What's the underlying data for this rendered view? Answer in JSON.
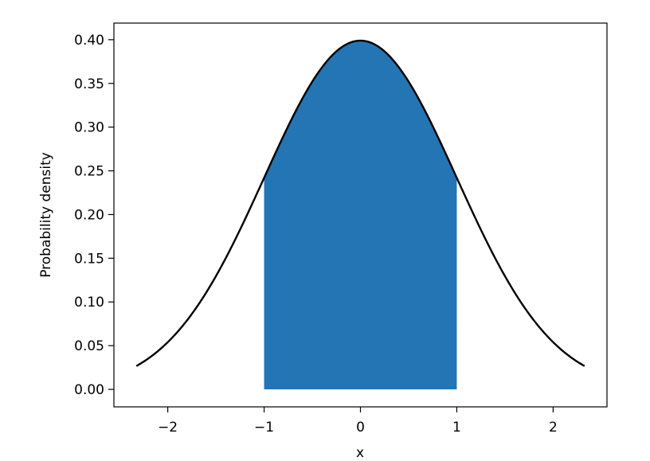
{
  "chart_data": {
    "type": "area",
    "title": "",
    "xlabel": "x",
    "ylabel": "Probability density",
    "xlim": [
      -2.559,
      2.559
    ],
    "ylim": [
      -0.02,
      0.419
    ],
    "grid": false,
    "legend": null,
    "x_ticks": [
      -2,
      -1,
      0,
      1,
      2
    ],
    "x_tick_labels": [
      "−2",
      "−1",
      "0",
      "1",
      "2"
    ],
    "y_ticks": [
      0,
      0.05,
      0.1,
      0.15,
      0.2,
      0.25,
      0.3,
      0.35,
      0.4
    ],
    "y_tick_labels": [
      "0.00",
      "0.05",
      "0.10",
      "0.15",
      "0.20",
      "0.25",
      "0.30",
      "0.35",
      "0.40"
    ],
    "curve": {
      "function": "standard normal pdf",
      "mean": 0,
      "std": 1,
      "x_range": [
        -2.326,
        2.326
      ],
      "color": "#000000"
    },
    "shaded_region": {
      "x_range": [
        -1,
        1
      ],
      "color": "#2475b4"
    }
  }
}
